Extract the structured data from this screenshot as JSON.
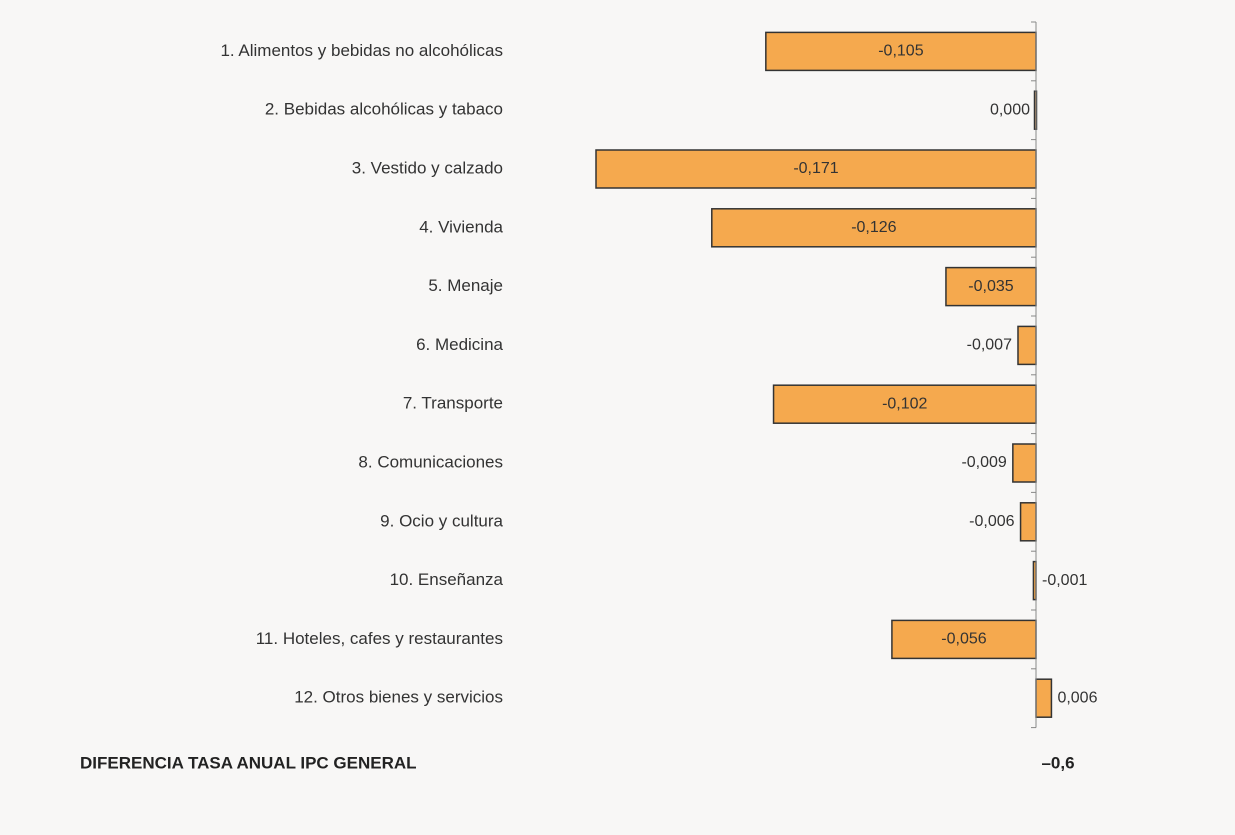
{
  "chart_data": {
    "type": "barh",
    "categories": [
      "1. Alimentos y bebidas no alcohólicas",
      "2. Bebidas alcohólicas y tabaco",
      "3. Vestido y calzado",
      "4. Vivienda",
      "5. Menaje",
      "6. Medicina",
      "7. Transporte",
      "8. Comunicaciones",
      "9. Ocio y cultura",
      "10. Enseñanza",
      "11. Hoteles, cafes y restaurantes",
      "12. Otros bienes y servicios"
    ],
    "values": [
      -0.105,
      0.0,
      -0.171,
      -0.126,
      -0.035,
      -0.007,
      -0.102,
      -0.009,
      -0.006,
      -0.001,
      -0.056,
      0.006
    ],
    "value_labels": [
      "-0,105",
      "0,000",
      "-0,171",
      "-0,126",
      "-0,035",
      "-0,007",
      "-0,102",
      "-0,009",
      "-0,006",
      "-0,001",
      "-0,056",
      "0,006"
    ],
    "color": "#f5a94e",
    "total": {
      "name": "DIFERENCIA TASA ANUAL IPC GENERAL",
      "value": -0.6,
      "value_label": "–0,6"
    }
  }
}
